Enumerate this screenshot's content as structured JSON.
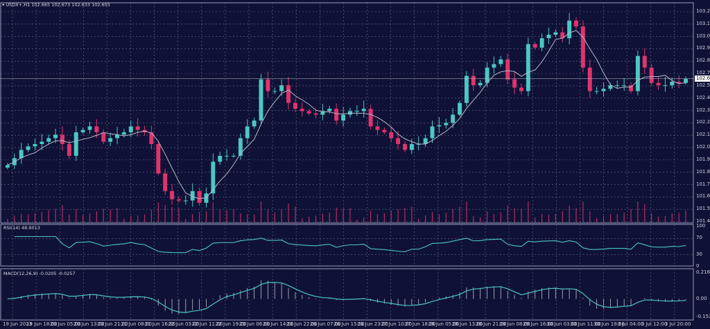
{
  "header": {
    "symbol_line": "USDX+,H1  102.665 102.673 102.633 102.655"
  },
  "rsi_title": "RSI(14) 48.9013",
  "macd_title": "MACD(12,26,9) -0.0205 -0.0257",
  "current_price": "102.655",
  "colors": {
    "background": "#0f1236",
    "bull": "#4cc7c4",
    "bear": "#e0336e",
    "ma": "#b8b8c8",
    "indicator": "#4cc7c4",
    "grid": "#6a6e90"
  },
  "chart_data": [
    {
      "type": "candlestick",
      "timeframe": "H1",
      "ylim": [
        101.44,
        103.225
      ],
      "yticks": [
        "103.225",
        "103.120",
        "103.015",
        "102.910",
        "102.805",
        "102.700",
        "102.595",
        "102.490",
        "102.385",
        "102.280",
        "102.175",
        "102.070",
        "101.965",
        "101.860",
        "101.755",
        "101.650",
        "101.545",
        "101.440"
      ],
      "xticks": [
        "19 Jun 2023",
        "19 Jun 18:00",
        "20 Jun 05:00",
        "20 Jun 13:00",
        "20 Jun 21:00",
        "21 Jun 08:00",
        "21 Jun 16:00",
        "22 Jun 03:00",
        "22 Jun 11:00",
        "22 Jun 19:00",
        "23 Jun 06:00",
        "23 Jun 14:00",
        "23 Jun 22:00",
        "26 Jun 07:00",
        "26 Jun 15:00",
        "26 Jun 23:00",
        "27 Jun 10:00",
        "27 Jun 18:00",
        "28 Jun 05:00",
        "28 Jun 13:00",
        "28 Jun 21:00",
        "29 Jun 08:00",
        "29 Jun 16:00",
        "30 Jun 03:00",
        "30 Jun 11:00",
        "30 Jun 19:00",
        "3 Jul 04:00",
        "3 Jul 12:00",
        "3 Jul 20:00"
      ],
      "closes": [
        101.92,
        101.98,
        102.05,
        102.08,
        102.1,
        102.12,
        102.15,
        102.18,
        102.1,
        102.0,
        102.2,
        102.22,
        102.25,
        102.2,
        102.12,
        102.15,
        102.18,
        102.2,
        102.25,
        102.22,
        102.2,
        102.1,
        101.85,
        101.7,
        101.63,
        101.62,
        101.62,
        101.7,
        101.6,
        101.68,
        101.95,
        102.0,
        102.0,
        102.0,
        102.15,
        102.25,
        102.3,
        102.65,
        102.55,
        102.55,
        102.6,
        102.45,
        102.4,
        102.38,
        102.36,
        102.35,
        102.38,
        102.4,
        102.3,
        102.35,
        102.38,
        102.38,
        102.4,
        102.25,
        102.22,
        102.2,
        102.15,
        102.1,
        102.05,
        102.1,
        102.1,
        102.15,
        102.25,
        102.26,
        102.28,
        102.35,
        102.45,
        102.68,
        102.6,
        102.62,
        102.75,
        102.78,
        102.82,
        102.65,
        102.58,
        102.55,
        102.95,
        102.92,
        103.0,
        103.03,
        103.05,
        103.0,
        103.15,
        103.1,
        102.75,
        102.55,
        102.55,
        102.57,
        102.6,
        102.6,
        102.6,
        102.55,
        102.85,
        102.75,
        102.62,
        102.6,
        102.6,
        102.63,
        102.62,
        102.655
      ],
      "moving_average": "on",
      "volume": "on",
      "grid": true
    },
    {
      "type": "line",
      "name": "RSI(14)",
      "ylim": [
        0,
        100
      ],
      "yticks": [
        "100",
        "70",
        "30",
        "0"
      ]
    },
    {
      "type": "line",
      "name": "MACD(12,26,9)",
      "ylim": [
        -0.1522,
        0.2166
      ],
      "yticks": [
        "0.2166",
        "0.00",
        "-0.1522"
      ]
    }
  ]
}
